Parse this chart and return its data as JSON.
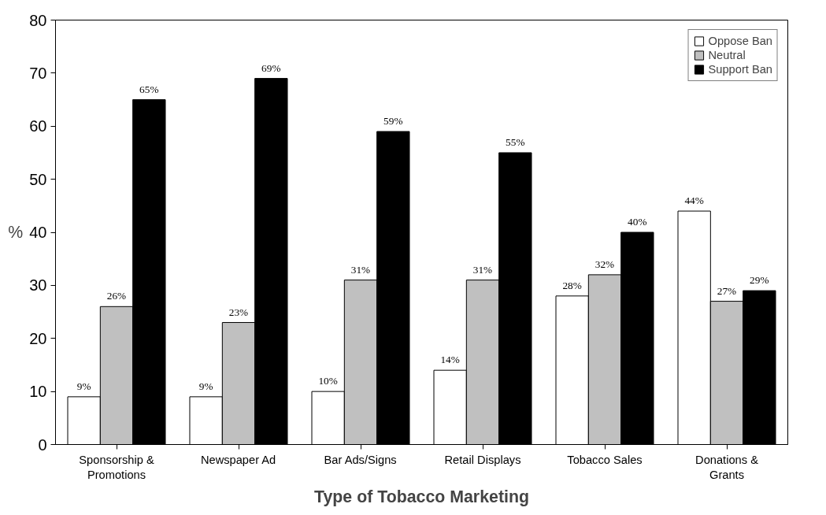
{
  "chart_data": {
    "type": "bar",
    "xlabel": "Type of Tobacco Marketing",
    "ylabel": "%",
    "categories": [
      "Sponsorship & Promotions",
      "Newspaper Ad",
      "Bar Ads/Signs",
      "Retail Displays",
      "Tobacco Sales",
      "Donations & Grants"
    ],
    "series": [
      {
        "name": "Oppose Ban",
        "color": "#ffffff",
        "values": [
          9,
          9,
          10,
          14,
          28,
          44
        ],
        "value_labels": [
          "9%",
          "9%",
          "10%",
          "14%",
          "28%",
          "44%"
        ]
      },
      {
        "name": "Neutral",
        "color": "#c0c0c0",
        "values": [
          26,
          23,
          31,
          31,
          32,
          27
        ],
        "value_labels": [
          "26%",
          "23%",
          "31%",
          "31%",
          "32%",
          "27%"
        ]
      },
      {
        "name": "Support Ban",
        "color": "#000000",
        "values": [
          65,
          69,
          59,
          55,
          40,
          29
        ],
        "value_labels": [
          "65%",
          "69%",
          "59%",
          "55%",
          "40%",
          "29%"
        ]
      }
    ],
    "ylim": [
      0,
      80
    ],
    "yticks": [
      0,
      10,
      20,
      30,
      40,
      50,
      60,
      70,
      80
    ],
    "grid": false,
    "legend": "top right"
  }
}
